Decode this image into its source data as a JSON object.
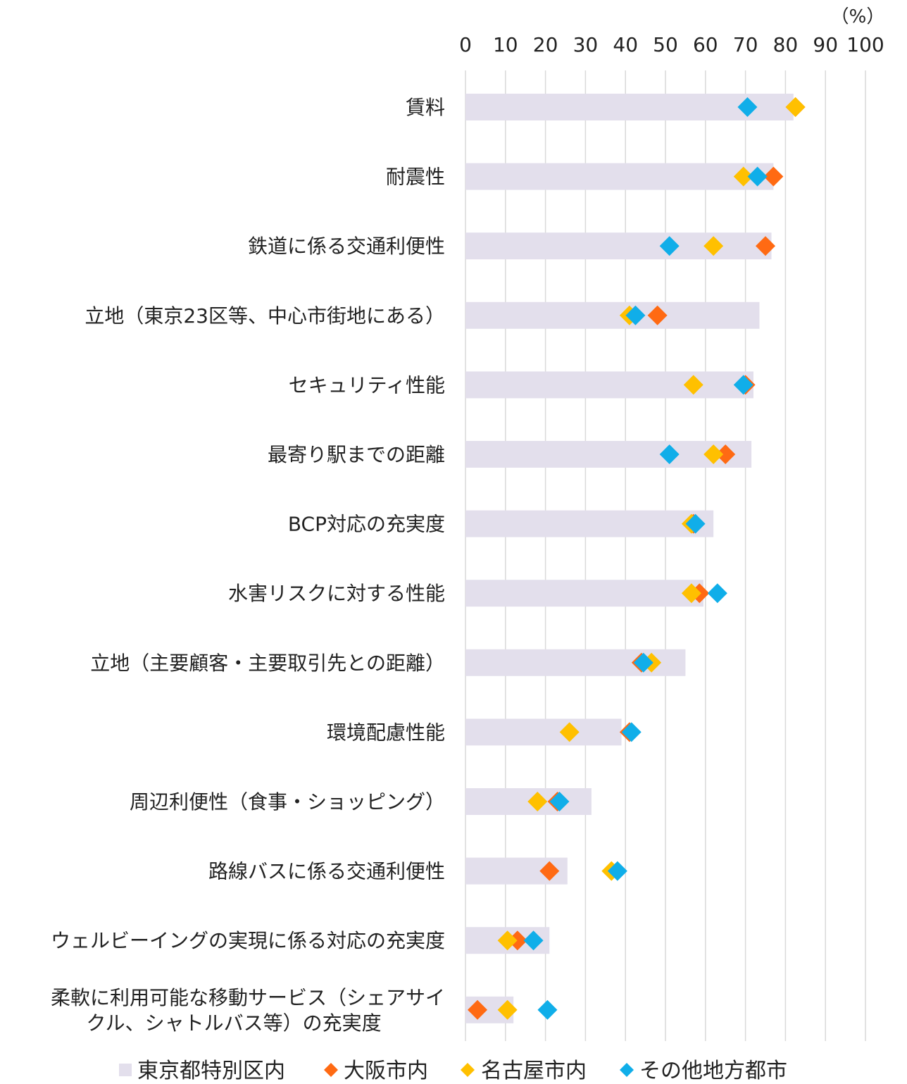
{
  "chart_data": {
    "type": "bar",
    "unit_label": "（%）",
    "xlim": [
      0,
      100
    ],
    "x_ticks": [
      "0",
      "10",
      "20",
      "30",
      "40",
      "50",
      "60",
      "70",
      "80",
      "90",
      "100"
    ],
    "grid": true,
    "orientation": "horizontal",
    "legend_position": "bottom",
    "categories": [
      [
        "賃料"
      ],
      [
        "耐震性"
      ],
      [
        "鉄道に係る交通利便性"
      ],
      [
        "立地（東京23区等、中心市街地にある）"
      ],
      [
        "セキュリティ性能"
      ],
      [
        "最寄り駅までの距離"
      ],
      [
        "BCP対応の充実度"
      ],
      [
        "水害リスクに対する性能"
      ],
      [
        "立地（主要顧客・主要取引先との距離）"
      ],
      [
        "環境配慮性能"
      ],
      [
        "周辺利便性（食事・ショッピング）"
      ],
      [
        "路線バスに係る交通利便性"
      ],
      [
        "ウェルビーイングの実現に係る対応の充実度"
      ],
      [
        "柔軟に利用可能な移動サービス（シェアサイ",
        "クル、シャトルバス等）の充実度"
      ]
    ],
    "series": [
      {
        "name": "東京都特別区内",
        "kind": "bar",
        "color": "#e3dfec",
        "values": [
          82,
          77,
          76.5,
          73.5,
          72,
          71.5,
          62,
          59.5,
          55,
          39,
          31.5,
          25.5,
          21,
          12
        ]
      },
      {
        "name": "大阪市内",
        "kind": "marker",
        "color": "#ff6a13",
        "values": [
          82.5,
          77,
          75,
          48,
          70,
          65,
          57,
          58.5,
          44,
          41,
          23,
          21,
          13,
          3
        ]
      },
      {
        "name": "名古屋市内",
        "kind": "marker",
        "color": "#ffc000",
        "values": [
          82.5,
          69.5,
          62,
          41,
          57,
          62,
          56.5,
          56.5,
          46.5,
          26,
          18,
          36.5,
          10.5,
          10.5
        ]
      },
      {
        "name": "その他地方都市",
        "kind": "marker",
        "color": "#10aee9",
        "values": [
          70.5,
          73,
          51,
          42.5,
          69.5,
          51,
          57.5,
          63,
          44.5,
          41.5,
          23.5,
          38,
          17,
          20.5
        ]
      }
    ]
  }
}
